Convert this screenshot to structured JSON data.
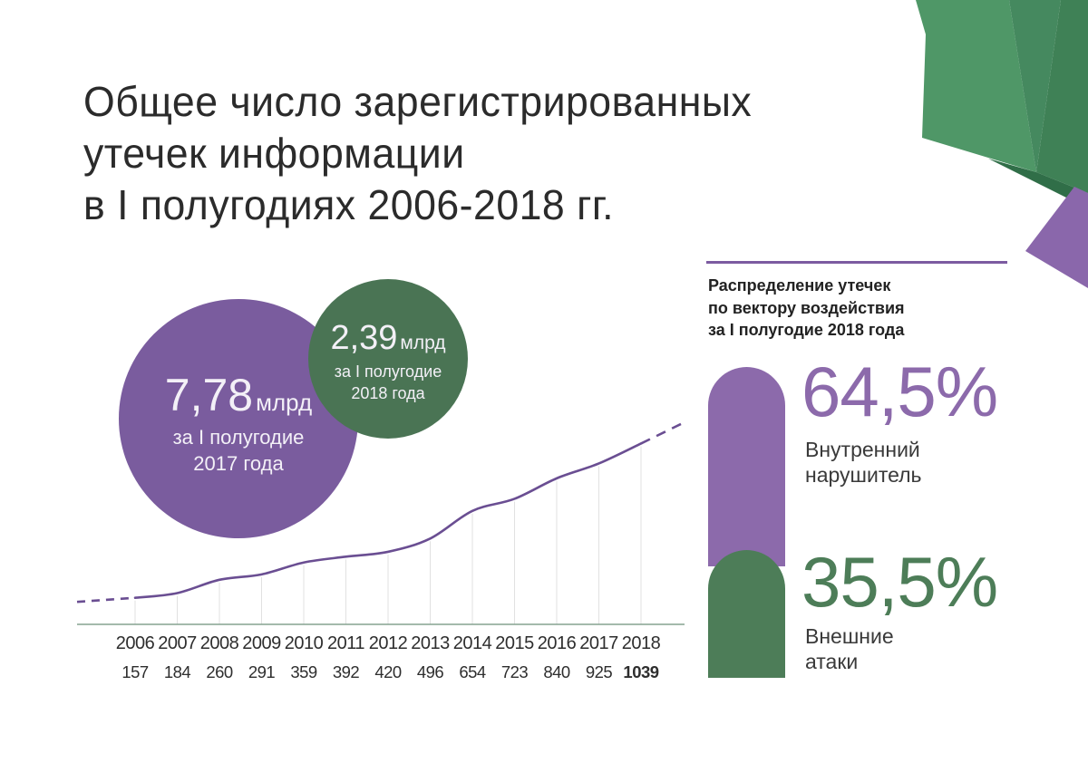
{
  "title": {
    "line1": "Общее число зарегистрированных",
    "line2": "утечек информации",
    "line3": "в I полугодиях 2006-2018 гг."
  },
  "bubbles": {
    "big": {
      "value": "7,78",
      "unit": "млрд",
      "caption1": "за I полугодие",
      "caption2": "2017 года",
      "color": "#7a5c9e"
    },
    "small": {
      "value": "2,39",
      "unit": "млрд",
      "caption1": "за I полугодие",
      "caption2": "2018 года",
      "color": "#4a7454"
    }
  },
  "chart_data": {
    "type": "line",
    "title": "Общее число зарегистрированных утечек информации в I полугодиях 2006-2018 гг.",
    "categories": [
      "2006",
      "2007",
      "2008",
      "2009",
      "2010",
      "2011",
      "2012",
      "2013",
      "2014",
      "2015",
      "2016",
      "2017",
      "2018"
    ],
    "values": [
      157,
      184,
      260,
      291,
      359,
      392,
      420,
      496,
      654,
      723,
      840,
      925,
      1039
    ],
    "bold_last_value": true,
    "xlabel": "",
    "ylabel": "",
    "ylim": [
      0,
      1100
    ],
    "grid": "vertical drop lines from curve to baseline at each year",
    "legend": "none",
    "dashed_extensions": [
      "left of 2006 (flat)",
      "right of 2018 (rising projection)"
    ],
    "line_color": "#6a4e92",
    "gridline_color": "#e1e1e1",
    "baseline_color": "#86a391"
  },
  "panel": {
    "rule_color": "#7c5ba0",
    "header": {
      "line1": "Распределение утечек",
      "line2": "по вектору воздействия",
      "line3": "за I полугодие 2018 года"
    },
    "items": [
      {
        "percent": "64,5%",
        "label1": "Внутренний",
        "label2": "нарушитель",
        "color": "#8c6aab"
      },
      {
        "percent": "35,5%",
        "label1": "Внешние",
        "label2": "атаки",
        "color": "#4d7d58"
      }
    ]
  },
  "decoration": {
    "facet_colors": [
      "#4f9767",
      "#45895f",
      "#3f8156",
      "#306e48",
      "#8a67ab"
    ]
  }
}
